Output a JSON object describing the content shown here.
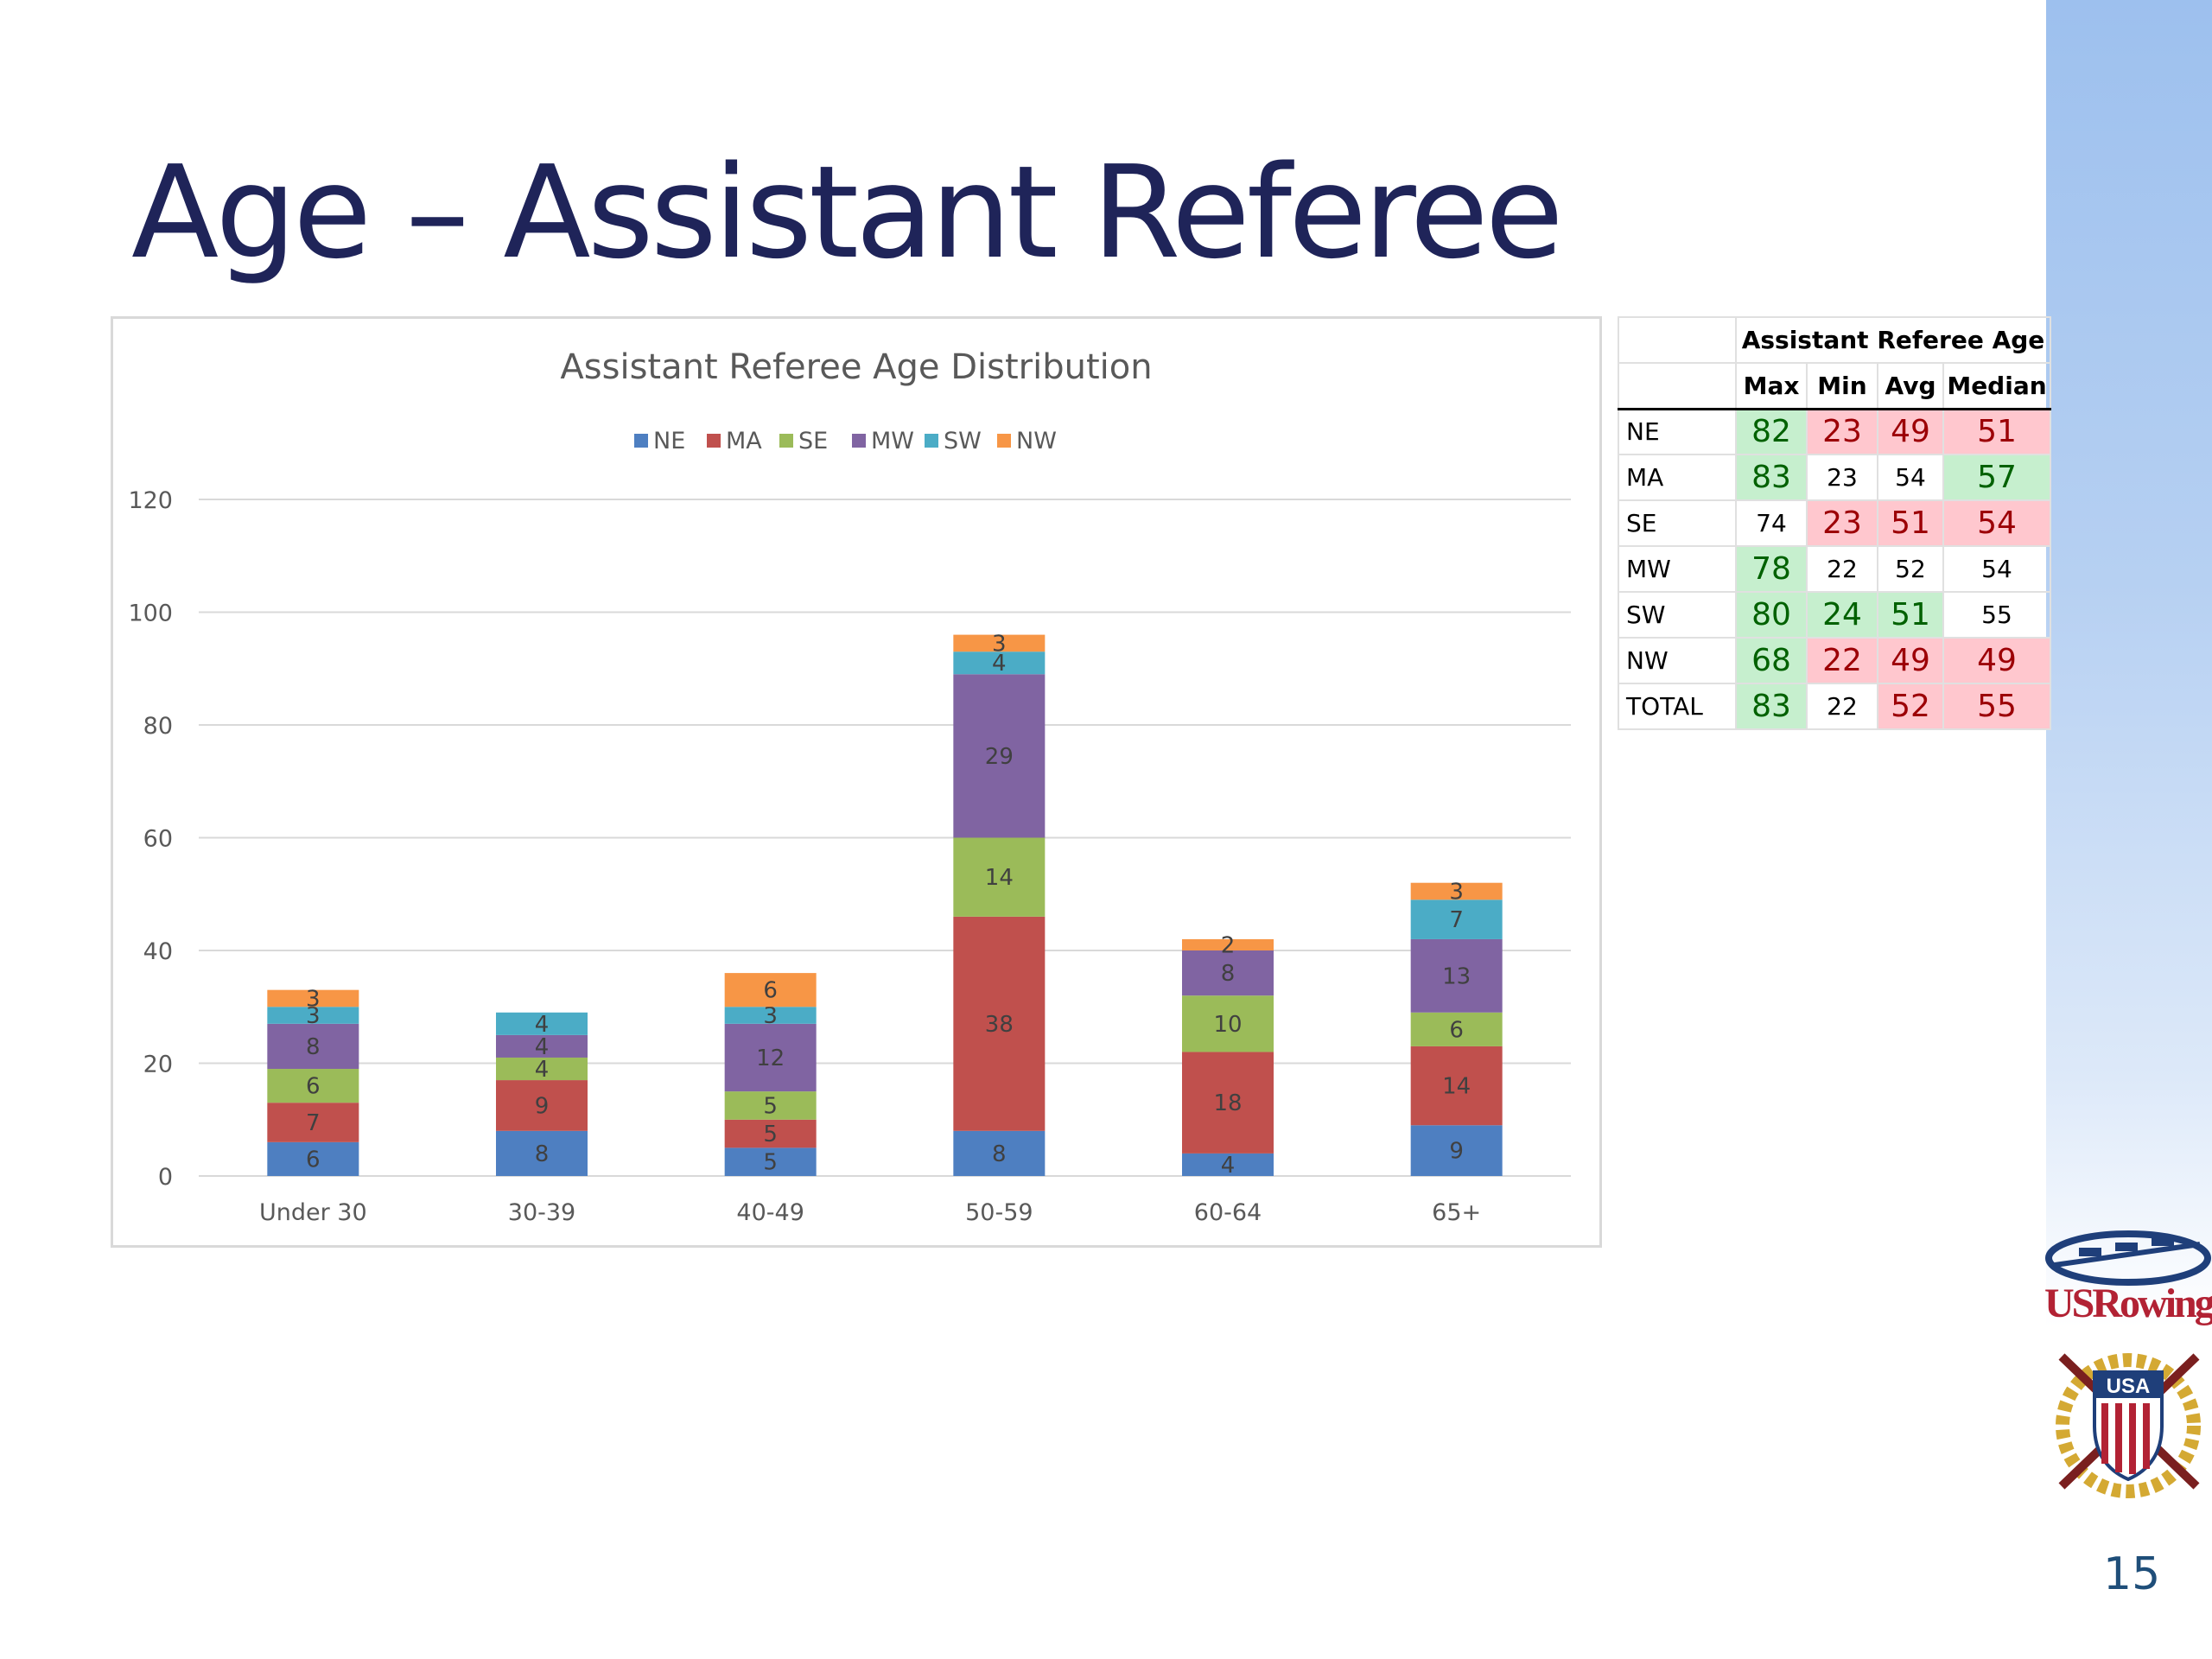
{
  "slide": {
    "title": "Age – Assistant Referee",
    "page_number": "15",
    "logo_text": "USRowing",
    "seal_text": "USA"
  },
  "chart_data": {
    "type": "bar",
    "stacked": true,
    "title": "Assistant Referee Age Distribution",
    "categories": [
      "Under 30",
      "30-39",
      "40-49",
      "50-59",
      "60-64",
      "65+"
    ],
    "series": [
      {
        "name": "NE",
        "color": "#4e7fc1",
        "values": [
          6,
          8,
          5,
          8,
          4,
          9
        ]
      },
      {
        "name": "MA",
        "color": "#c0504d",
        "values": [
          7,
          9,
          5,
          38,
          18,
          14
        ]
      },
      {
        "name": "SE",
        "color": "#9bbb59",
        "values": [
          6,
          4,
          5,
          14,
          10,
          6
        ]
      },
      {
        "name": "MW",
        "color": "#8064a2",
        "values": [
          8,
          4,
          12,
          29,
          8,
          13
        ]
      },
      {
        "name": "SW",
        "color": "#4bacc6",
        "values": [
          3,
          4,
          3,
          4,
          0,
          7
        ]
      },
      {
        "name": "NW",
        "color": "#f79646",
        "values": [
          3,
          0,
          6,
          3,
          2,
          3
        ]
      }
    ],
    "ylim": [
      0,
      120
    ],
    "yticks": [
      0,
      20,
      40,
      60,
      80,
      100,
      120
    ],
    "grid": true,
    "legend": "top"
  },
  "table": {
    "title": "Assistant Referee Age",
    "columns": [
      "Max",
      "Min",
      "Avg",
      "Median"
    ],
    "rows": [
      {
        "label": "NE",
        "cells": [
          {
            "v": "82",
            "s": "good"
          },
          {
            "v": "23",
            "s": "bad"
          },
          {
            "v": "49",
            "s": "bad"
          },
          {
            "v": "51",
            "s": "bad"
          }
        ]
      },
      {
        "label": "MA",
        "cells": [
          {
            "v": "83",
            "s": "good"
          },
          {
            "v": "23",
            "s": ""
          },
          {
            "v": "54",
            "s": ""
          },
          {
            "v": "57",
            "s": "good"
          }
        ]
      },
      {
        "label": "SE",
        "cells": [
          {
            "v": "74",
            "s": ""
          },
          {
            "v": "23",
            "s": "bad"
          },
          {
            "v": "51",
            "s": "bad"
          },
          {
            "v": "54",
            "s": "bad"
          }
        ]
      },
      {
        "label": "MW",
        "cells": [
          {
            "v": "78",
            "s": "good"
          },
          {
            "v": "22",
            "s": ""
          },
          {
            "v": "52",
            "s": ""
          },
          {
            "v": "54",
            "s": ""
          }
        ]
      },
      {
        "label": "SW",
        "cells": [
          {
            "v": "80",
            "s": "good"
          },
          {
            "v": "24",
            "s": "good"
          },
          {
            "v": "51",
            "s": "good"
          },
          {
            "v": "55",
            "s": ""
          }
        ]
      },
      {
        "label": "NW",
        "cells": [
          {
            "v": "68",
            "s": "good"
          },
          {
            "v": "22",
            "s": "bad"
          },
          {
            "v": "49",
            "s": "bad"
          },
          {
            "v": "49",
            "s": "bad"
          }
        ]
      },
      {
        "label": "TOTAL",
        "cells": [
          {
            "v": "83",
            "s": "good"
          },
          {
            "v": "22",
            "s": ""
          },
          {
            "v": "52",
            "s": "bad"
          },
          {
            "v": "55",
            "s": "bad"
          }
        ]
      }
    ]
  }
}
